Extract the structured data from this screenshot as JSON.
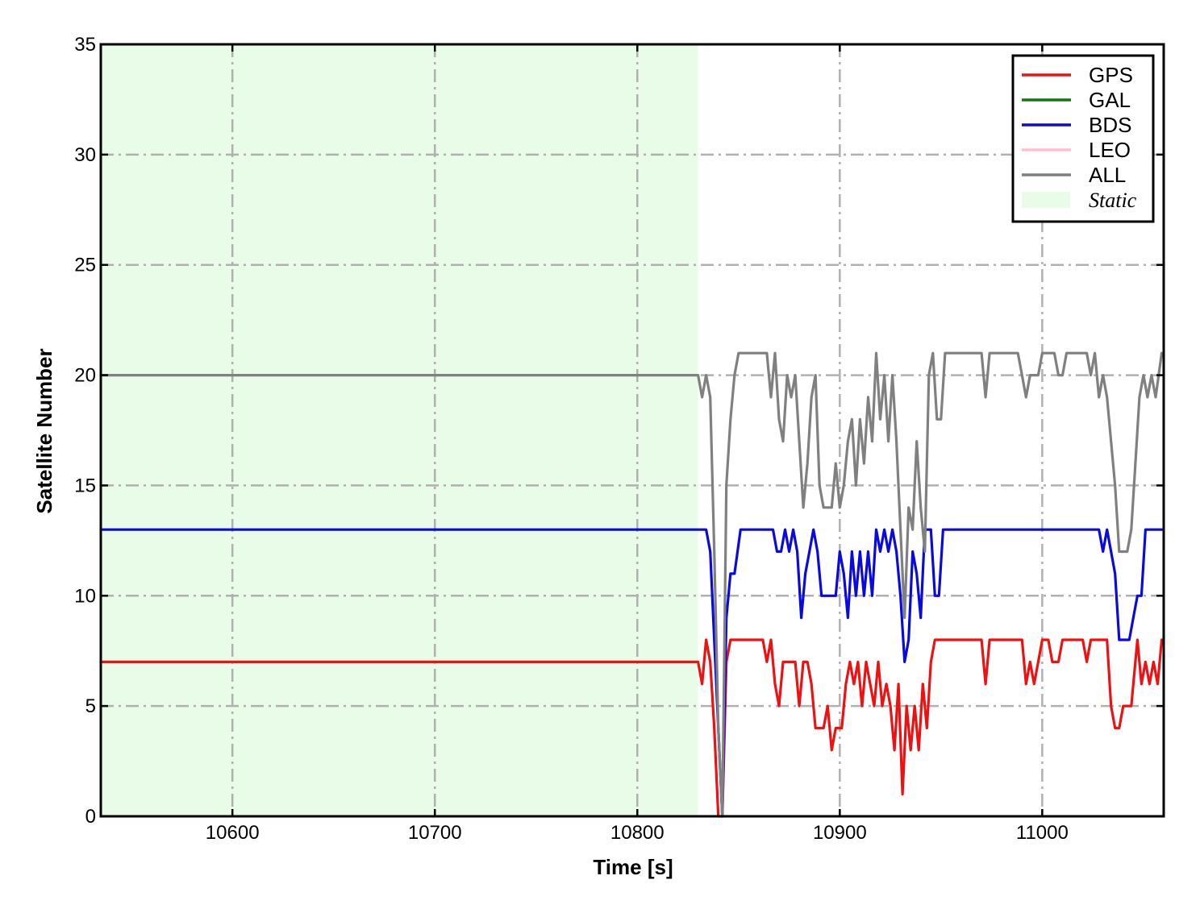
{
  "chart_data": {
    "type": "line",
    "title": "",
    "xlabel": "Time [s]",
    "ylabel": "Satellite Number",
    "xlim": [
      10535,
      11060
    ],
    "ylim": [
      0,
      35
    ],
    "xticks": [
      10600,
      10700,
      10800,
      10900,
      11000
    ],
    "yticks": [
      0,
      5,
      10,
      15,
      20,
      25,
      30,
      35
    ],
    "grid": true,
    "legend_position": "top-right",
    "static_region": {
      "label": "Static",
      "x_start": 10535,
      "x_end": 10830,
      "color": "#e8fce8"
    },
    "series": [
      {
        "name": "GPS",
        "color": "#ee1111",
        "points": [
          [
            10535,
            7
          ],
          [
            10830,
            7
          ],
          [
            10832,
            6
          ],
          [
            10834,
            8
          ],
          [
            10836,
            7
          ],
          [
            10838,
            4
          ],
          [
            10840,
            0
          ],
          [
            10842,
            0
          ],
          [
            10844,
            7
          ],
          [
            10846,
            8
          ],
          [
            10862,
            8
          ],
          [
            10864,
            7
          ],
          [
            10866,
            8
          ],
          [
            10868,
            6
          ],
          [
            10870,
            5
          ],
          [
            10872,
            7
          ],
          [
            10878,
            7
          ],
          [
            10880,
            5
          ],
          [
            10882,
            7
          ],
          [
            10884,
            7
          ],
          [
            10886,
            6
          ],
          [
            10888,
            4
          ],
          [
            10892,
            4
          ],
          [
            10894,
            5
          ],
          [
            10896,
            3
          ],
          [
            10898,
            4
          ],
          [
            10901,
            4
          ],
          [
            10903,
            6
          ],
          [
            10905,
            7
          ],
          [
            10907,
            6
          ],
          [
            10909,
            7
          ],
          [
            10911,
            5
          ],
          [
            10913,
            7
          ],
          [
            10915,
            6
          ],
          [
            10917,
            5
          ],
          [
            10919,
            7
          ],
          [
            10921,
            5
          ],
          [
            10923,
            6
          ],
          [
            10925,
            5
          ],
          [
            10927,
            3
          ],
          [
            10929,
            6
          ],
          [
            10931,
            1
          ],
          [
            10933,
            5
          ],
          [
            10935,
            3
          ],
          [
            10937,
            5
          ],
          [
            10939,
            3
          ],
          [
            10941,
            6
          ],
          [
            10943,
            4
          ],
          [
            10945,
            7
          ],
          [
            10947,
            8
          ],
          [
            10970,
            8
          ],
          [
            10972,
            6
          ],
          [
            10974,
            8
          ],
          [
            10990,
            8
          ],
          [
            10992,
            6
          ],
          [
            10994,
            7
          ],
          [
            10996,
            6
          ],
          [
            10998,
            7
          ],
          [
            11000,
            8
          ],
          [
            11003,
            8
          ],
          [
            11005,
            7
          ],
          [
            11008,
            7
          ],
          [
            11010,
            8
          ],
          [
            11020,
            8
          ],
          [
            11022,
            7
          ],
          [
            11024,
            8
          ],
          [
            11032,
            8
          ],
          [
            11034,
            5
          ],
          [
            11036,
            4
          ],
          [
            11038,
            4
          ],
          [
            11040,
            5
          ],
          [
            11044,
            5
          ],
          [
            11047,
            8
          ],
          [
            11049,
            6
          ],
          [
            11051,
            7
          ],
          [
            11053,
            6
          ],
          [
            11055,
            7
          ],
          [
            11057,
            6
          ],
          [
            11059,
            8
          ]
        ]
      },
      {
        "name": "GAL",
        "color": "#107810",
        "points": []
      },
      {
        "name": "BDS",
        "color": "#0a0ae0",
        "points": [
          [
            10535,
            13
          ],
          [
            10834,
            13
          ],
          [
            10836,
            12
          ],
          [
            10838,
            8
          ],
          [
            10840,
            4
          ],
          [
            10842,
            0
          ],
          [
            10844,
            9
          ],
          [
            10846,
            11
          ],
          [
            10848,
            11
          ],
          [
            10851,
            13
          ],
          [
            10867,
            13
          ],
          [
            10869,
            12
          ],
          [
            10871,
            12
          ],
          [
            10873,
            13
          ],
          [
            10875,
            12
          ],
          [
            10877,
            13
          ],
          [
            10879,
            12
          ],
          [
            10881,
            9
          ],
          [
            10883,
            11
          ],
          [
            10885,
            12
          ],
          [
            10887,
            13
          ],
          [
            10889,
            12
          ],
          [
            10891,
            10
          ],
          [
            10898,
            10
          ],
          [
            10900,
            12
          ],
          [
            10902,
            11
          ],
          [
            10904,
            9
          ],
          [
            10906,
            12
          ],
          [
            10908,
            10
          ],
          [
            10910,
            12
          ],
          [
            10912,
            10
          ],
          [
            10914,
            12
          ],
          [
            10916,
            10
          ],
          [
            10918,
            13
          ],
          [
            10920,
            12
          ],
          [
            10922,
            13
          ],
          [
            10924,
            12
          ],
          [
            10926,
            13
          ],
          [
            10928,
            12
          ],
          [
            10930,
            10
          ],
          [
            10932,
            7
          ],
          [
            10934,
            8
          ],
          [
            10936,
            12
          ],
          [
            10938,
            11
          ],
          [
            10940,
            9
          ],
          [
            10942,
            13
          ],
          [
            10945,
            13
          ],
          [
            10947,
            10
          ],
          [
            10949,
            10
          ],
          [
            10951,
            13
          ],
          [
            11028,
            13
          ],
          [
            11030,
            12
          ],
          [
            11032,
            13
          ],
          [
            11036,
            11
          ],
          [
            11038,
            8
          ],
          [
            11043,
            8
          ],
          [
            11045,
            9
          ],
          [
            11047,
            10
          ],
          [
            11049,
            10
          ],
          [
            11051,
            13
          ],
          [
            11059,
            13
          ]
        ]
      },
      {
        "name": "LEO",
        "color": "#ffc0cb",
        "points": []
      },
      {
        "name": "ALL",
        "color": "#808080",
        "points": [
          [
            10535,
            20
          ],
          [
            10830,
            20
          ],
          [
            10832,
            19
          ],
          [
            10834,
            20
          ],
          [
            10836,
            19
          ],
          [
            10838,
            12
          ],
          [
            10840,
            4
          ],
          [
            10842,
            0
          ],
          [
            10844,
            15
          ],
          [
            10846,
            18
          ],
          [
            10848,
            20
          ],
          [
            10850,
            21
          ],
          [
            10864,
            21
          ],
          [
            10866,
            19
          ],
          [
            10868,
            21
          ],
          [
            10870,
            18
          ],
          [
            10872,
            17
          ],
          [
            10874,
            20
          ],
          [
            10876,
            19
          ],
          [
            10878,
            20
          ],
          [
            10880,
            17
          ],
          [
            10882,
            14
          ],
          [
            10884,
            16
          ],
          [
            10886,
            19
          ],
          [
            10888,
            20
          ],
          [
            10890,
            15
          ],
          [
            10892,
            14
          ],
          [
            10896,
            14
          ],
          [
            10898,
            16
          ],
          [
            10900,
            14
          ],
          [
            10902,
            15
          ],
          [
            10904,
            17
          ],
          [
            10906,
            18
          ],
          [
            10908,
            15
          ],
          [
            10910,
            18
          ],
          [
            10912,
            16
          ],
          [
            10914,
            19
          ],
          [
            10916,
            17
          ],
          [
            10918,
            21
          ],
          [
            10920,
            18
          ],
          [
            10922,
            20
          ],
          [
            10924,
            17
          ],
          [
            10926,
            20
          ],
          [
            10928,
            17
          ],
          [
            10930,
            13
          ],
          [
            10932,
            9
          ],
          [
            10934,
            14
          ],
          [
            10936,
            13
          ],
          [
            10938,
            17
          ],
          [
            10940,
            14
          ],
          [
            10942,
            12
          ],
          [
            10944,
            20
          ],
          [
            10946,
            21
          ],
          [
            10948,
            18
          ],
          [
            10950,
            18
          ],
          [
            10952,
            21
          ],
          [
            10970,
            21
          ],
          [
            10972,
            19
          ],
          [
            10974,
            21
          ],
          [
            10988,
            21
          ],
          [
            10990,
            20
          ],
          [
            10992,
            19
          ],
          [
            10994,
            20
          ],
          [
            10998,
            20
          ],
          [
            11000,
            21
          ],
          [
            11006,
            21
          ],
          [
            11008,
            20
          ],
          [
            11010,
            20
          ],
          [
            11012,
            21
          ],
          [
            11022,
            21
          ],
          [
            11024,
            20
          ],
          [
            11026,
            21
          ],
          [
            11028,
            19
          ],
          [
            11030,
            20
          ],
          [
            11032,
            19
          ],
          [
            11036,
            15
          ],
          [
            11038,
            12
          ],
          [
            11042,
            12
          ],
          [
            11044,
            13
          ],
          [
            11046,
            16
          ],
          [
            11048,
            19
          ],
          [
            11050,
            20
          ],
          [
            11052,
            19
          ],
          [
            11054,
            20
          ],
          [
            11056,
            19
          ],
          [
            11059,
            21
          ]
        ]
      }
    ]
  }
}
